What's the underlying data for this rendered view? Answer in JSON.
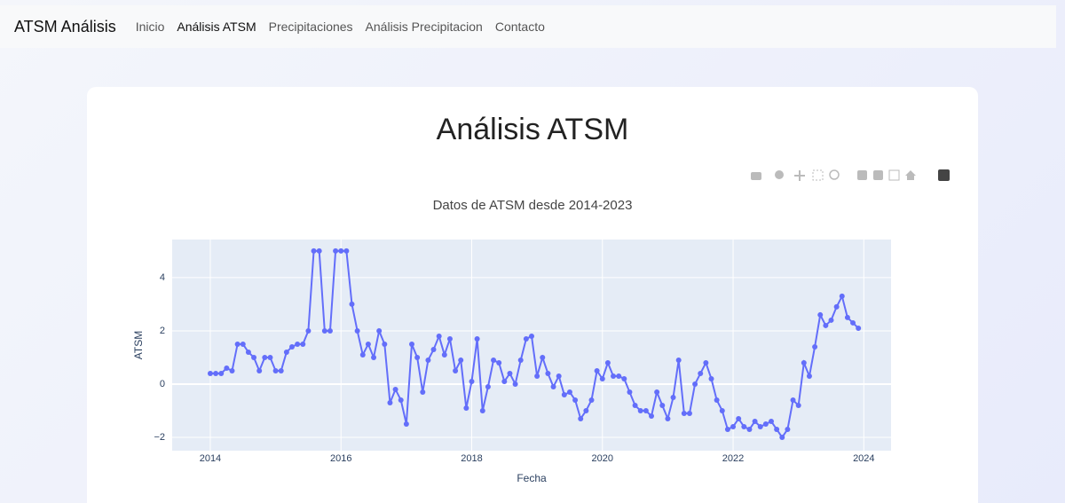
{
  "nav": {
    "brand": "ATSM Análisis",
    "links": [
      "Inicio",
      "Análisis ATSM",
      "Precipitaciones",
      "Análisis Precipitacion",
      "Contacto"
    ],
    "active_index": 1
  },
  "page_title": "Análisis ATSM",
  "chart_data": {
    "type": "line",
    "title": "Datos de ATSM desde 2014-2023",
    "x_label": "Fecha",
    "y_label": "ATSM",
    "x": [
      "2014-01",
      "2014-02",
      "2014-03",
      "2014-04",
      "2014-05",
      "2014-06",
      "2014-07",
      "2014-08",
      "2014-09",
      "2014-10",
      "2014-11",
      "2014-12",
      "2015-01",
      "2015-02",
      "2015-03",
      "2015-04",
      "2015-05",
      "2015-06",
      "2015-07",
      "2015-08",
      "2015-09",
      "2015-10",
      "2015-11",
      "2015-12",
      "2016-01",
      "2016-02",
      "2016-03",
      "2016-04",
      "2016-05",
      "2016-06",
      "2016-07",
      "2016-08",
      "2016-09",
      "2016-10",
      "2016-11",
      "2016-12",
      "2017-01",
      "2017-02",
      "2017-03",
      "2017-04",
      "2017-05",
      "2017-06",
      "2017-07",
      "2017-08",
      "2017-09",
      "2017-10",
      "2017-11",
      "2017-12",
      "2018-01",
      "2018-02",
      "2018-03",
      "2018-04",
      "2018-05",
      "2018-06",
      "2018-07",
      "2018-08",
      "2018-09",
      "2018-10",
      "2018-11",
      "2018-12",
      "2019-01",
      "2019-02",
      "2019-03",
      "2019-04",
      "2019-05",
      "2019-06",
      "2019-07",
      "2019-08",
      "2019-09",
      "2019-10",
      "2019-11",
      "2019-12",
      "2020-01",
      "2020-02",
      "2020-03",
      "2020-04",
      "2020-05",
      "2020-06",
      "2020-07",
      "2020-08",
      "2020-09",
      "2020-10",
      "2020-11",
      "2020-12",
      "2021-01",
      "2021-02",
      "2021-03",
      "2021-04",
      "2021-05",
      "2021-06",
      "2021-07",
      "2021-08",
      "2021-09",
      "2021-10",
      "2021-11",
      "2021-12",
      "2022-01",
      "2022-02",
      "2022-03",
      "2022-04",
      "2022-05",
      "2022-06",
      "2022-07",
      "2022-08",
      "2022-09",
      "2022-10",
      "2022-11",
      "2022-12",
      "2023-01",
      "2023-02",
      "2023-03",
      "2023-04",
      "2023-05",
      "2023-06",
      "2023-07",
      "2023-08",
      "2023-09",
      "2023-10",
      "2023-11",
      "2023-12"
    ],
    "series": [
      {
        "name": "ATSM",
        "color": "#636efa",
        "values": [
          0.4,
          0.4,
          0.4,
          0.6,
          0.5,
          1.5,
          1.5,
          1.2,
          1.0,
          0.5,
          1.0,
          1.0,
          0.5,
          0.5,
          1.2,
          1.4,
          1.5,
          1.5,
          2.0,
          5.0,
          5.0,
          2.0,
          2.0,
          5.0,
          5.0,
          5.0,
          3.0,
          2.0,
          1.1,
          1.5,
          1.0,
          2.0,
          1.5,
          -0.7,
          -0.2,
          -0.6,
          -1.5,
          1.5,
          1.0,
          -0.3,
          0.9,
          1.3,
          1.8,
          1.1,
          1.7,
          0.5,
          0.9,
          -0.9,
          0.1,
          1.7,
          -1.0,
          -0.1,
          0.9,
          0.8,
          0.1,
          0.4,
          0.0,
          0.9,
          1.7,
          1.8,
          0.3,
          1.0,
          0.4,
          -0.1,
          0.3,
          -0.4,
          -0.3,
          -0.6,
          -1.3,
          -1.0,
          -0.6,
          0.5,
          0.2,
          0.8,
          0.3,
          0.3,
          0.2,
          -0.3,
          -0.8,
          -1.0,
          -1.0,
          -1.2,
          -0.3,
          -0.8,
          -1.3,
          -0.5,
          0.9,
          -1.1,
          -1.1,
          0.0,
          0.4,
          0.8,
          0.2,
          -0.6,
          -1.0,
          -1.7,
          -1.6,
          -1.3,
          -1.6,
          -1.7,
          -1.4,
          -1.6,
          -1.5,
          -1.4,
          -1.7,
          -2.0,
          -1.7,
          -0.6,
          -0.8,
          0.8,
          0.3,
          1.4,
          2.6,
          2.2,
          2.4,
          2.9,
          3.3,
          2.5,
          2.3,
          2.1
        ]
      }
    ],
    "xlim": [
      "2013-06",
      "2024-06"
    ],
    "xticks": [
      2014,
      2016,
      2018,
      2020,
      2022,
      2024
    ],
    "ylim": [
      -2.5,
      5.43
    ],
    "yticks": [
      {
        "value": -2,
        "label": "−2"
      },
      0,
      2,
      4
    ],
    "grid": true
  }
}
